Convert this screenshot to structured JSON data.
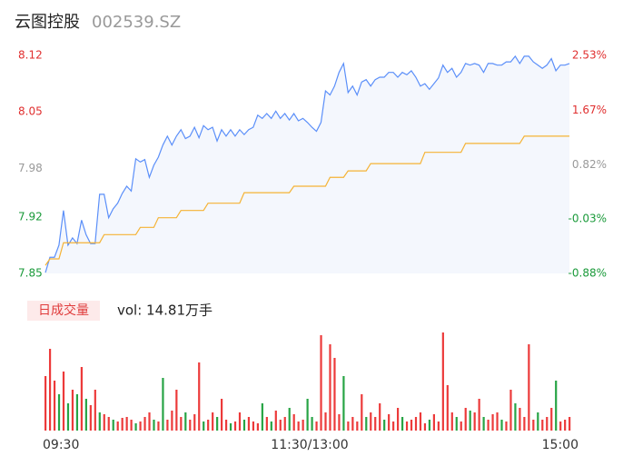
{
  "header": {
    "name": "云图控股",
    "code": "002539.SZ"
  },
  "chart_data": [
    {
      "type": "line",
      "xlim": [
        0,
        117
      ],
      "ylim": [
        7.85,
        8.12
      ],
      "yticks": [
        7.85,
        7.92,
        7.98,
        8.05,
        8.12
      ],
      "ytick_colors": [
        "#1a9a3a",
        "#1a9a3a",
        "#999999",
        "#e02f2f",
        "#e02f2f"
      ],
      "y2lim": [
        -0.88,
        2.53
      ],
      "y2ticks": [
        {
          "value": -0.88,
          "label": "-0.88%"
        },
        {
          "value": -0.03,
          "label": "-0.03%"
        },
        {
          "value": 0.82,
          "label": "0.82%"
        },
        {
          "value": 1.67,
          "label": "1.67%"
        },
        {
          "value": 2.53,
          "label": "2.53%"
        }
      ],
      "y2tick_colors": [
        "#1a9a3a",
        "#1a9a3a",
        "#999999",
        "#e02f2f",
        "#e02f2f"
      ],
      "area_color": "#f4f7fd",
      "series": [
        {
          "color": "#5b8ff9",
          "values": [
            7.851,
            7.87,
            7.87,
            7.885,
            7.928,
            7.885,
            7.894,
            7.887,
            7.916,
            7.898,
            7.887,
            7.887,
            7.948,
            7.948,
            7.919,
            7.93,
            7.937,
            7.949,
            7.958,
            7.952,
            7.992,
            7.988,
            7.991,
            7.969,
            7.984,
            7.994,
            8.009,
            8.02,
            8.009,
            8.02,
            8.028,
            8.017,
            8.02,
            8.031,
            8.018,
            8.033,
            8.028,
            8.031,
            8.014,
            8.028,
            8.02,
            8.028,
            8.02,
            8.028,
            8.022,
            8.028,
            8.031,
            8.046,
            8.042,
            8.048,
            8.042,
            8.051,
            8.042,
            8.048,
            8.04,
            8.048,
            8.039,
            8.042,
            8.037,
            8.031,
            8.026,
            8.037,
            8.076,
            8.071,
            8.082,
            8.099,
            8.11,
            8.074,
            8.082,
            8.071,
            8.087,
            8.09,
            8.082,
            8.09,
            8.093,
            8.093,
            8.099,
            8.099,
            8.093,
            8.099,
            8.096,
            8.101,
            8.093,
            8.082,
            8.085,
            8.078,
            8.085,
            8.092,
            8.108,
            8.099,
            8.104,
            8.093,
            8.099,
            8.11,
            8.108,
            8.11,
            8.108,
            8.099,
            8.11,
            8.11,
            8.108,
            8.108,
            8.112,
            8.112,
            8.119,
            8.11,
            8.119,
            8.119,
            8.112,
            8.108,
            8.104,
            8.108,
            8.116,
            8.101,
            8.108,
            8.108,
            8.11
          ]
        },
        {
          "color": "#f5b335",
          "values": [
            7.86,
            7.868,
            7.868,
            7.868,
            7.888,
            7.888,
            7.888,
            7.888,
            7.888,
            7.888,
            7.888,
            7.888,
            7.888,
            7.898,
            7.898,
            7.898,
            7.898,
            7.898,
            7.898,
            7.898,
            7.898,
            7.907,
            7.907,
            7.907,
            7.907,
            7.919,
            7.919,
            7.919,
            7.919,
            7.919,
            7.928,
            7.928,
            7.928,
            7.928,
            7.928,
            7.928,
            7.937,
            7.937,
            7.937,
            7.937,
            7.937,
            7.937,
            7.937,
            7.937,
            7.95,
            7.95,
            7.95,
            7.95,
            7.95,
            7.95,
            7.95,
            7.95,
            7.95,
            7.95,
            7.95,
            7.958,
            7.958,
            7.958,
            7.958,
            7.958,
            7.958,
            7.958,
            7.958,
            7.969,
            7.969,
            7.969,
            7.969,
            7.977,
            7.977,
            7.977,
            7.977,
            7.977,
            7.986,
            7.986,
            7.986,
            7.986,
            7.986,
            7.986,
            7.986,
            7.986,
            7.986,
            7.986,
            7.986,
            7.986,
            8.0,
            8.0,
            8.0,
            8.0,
            8.0,
            8.0,
            8.0,
            8.0,
            8.0,
            8.011,
            8.011,
            8.011,
            8.011,
            8.011,
            8.011,
            8.011,
            8.011,
            8.011,
            8.011,
            8.011,
            8.011,
            8.011,
            8.02,
            8.02,
            8.02,
            8.02,
            8.02,
            8.02,
            8.02,
            8.02,
            8.02,
            8.02,
            8.02
          ]
        }
      ]
    },
    {
      "type": "bar",
      "tab": "日成交量",
      "volume_label": "vol: 14.81万手",
      "xlim": [
        0,
        117
      ],
      "xticks": [
        {
          "value": 0,
          "label": "09:30"
        },
        {
          "value": 58.5,
          "label": "11:30/13:00"
        },
        {
          "value": 117,
          "label": "15:00"
        }
      ],
      "values": [
        60,
        90,
        55,
        40,
        65,
        30,
        45,
        40,
        70,
        35,
        28,
        45,
        20,
        18,
        15,
        12,
        10,
        14,
        15,
        12,
        8,
        10,
        15,
        20,
        12,
        10,
        58,
        12,
        22,
        45,
        15,
        20,
        12,
        18,
        75,
        10,
        12,
        20,
        15,
        35,
        12,
        8,
        10,
        20,
        12,
        15,
        10,
        8,
        30,
        15,
        10,
        22,
        12,
        15,
        25,
        18,
        10,
        12,
        35,
        15,
        10,
        105,
        20,
        95,
        80,
        18,
        60,
        10,
        15,
        10,
        40,
        15,
        20,
        15,
        30,
        12,
        18,
        10,
        25,
        15,
        10,
        12,
        15,
        20,
        8,
        12,
        18,
        10,
        108,
        50,
        20,
        15,
        10,
        25,
        22,
        20,
        35,
        15,
        12,
        18,
        20,
        12,
        10,
        45,
        30,
        25,
        15,
        95,
        12,
        20,
        12,
        15,
        25,
        55,
        10,
        12,
        15
      ],
      "colors": [
        "#ec3a3a",
        "#ec3a3a",
        "#ec3a3a",
        "#27a445",
        "#ec3a3a",
        "#27a445",
        "#ec3a3a",
        "#27a445",
        "#ec3a3a",
        "#27a445",
        "#ec3a3a",
        "#ec3a3a",
        "#27a445",
        "#ec3a3a",
        "#ec3a3a",
        "#27a445",
        "#ec3a3a",
        "#ec3a3a",
        "#ec3a3a",
        "#ec3a3a",
        "#27a445",
        "#ec3a3a",
        "#ec3a3a",
        "#ec3a3a",
        "#27a445",
        "#ec3a3a",
        "#27a445",
        "#ec3a3a",
        "#ec3a3a",
        "#ec3a3a",
        "#ec3a3a",
        "#27a445",
        "#ec3a3a",
        "#ec3a3a",
        "#ec3a3a",
        "#27a445",
        "#ec3a3a",
        "#ec3a3a",
        "#27a445",
        "#ec3a3a",
        "#ec3a3a",
        "#27a445",
        "#ec3a3a",
        "#ec3a3a",
        "#27a445",
        "#ec3a3a",
        "#ec3a3a",
        "#ec3a3a",
        "#27a445",
        "#ec3a3a",
        "#27a445",
        "#ec3a3a",
        "#ec3a3a",
        "#ec3a3a",
        "#27a445",
        "#ec3a3a",
        "#ec3a3a",
        "#ec3a3a",
        "#27a445",
        "#27a445",
        "#ec3a3a",
        "#ec3a3a",
        "#ec3a3a",
        "#ec3a3a",
        "#ec3a3a",
        "#ec3a3a",
        "#27a445",
        "#ec3a3a",
        "#ec3a3a",
        "#ec3a3a",
        "#ec3a3a",
        "#27a445",
        "#ec3a3a",
        "#ec3a3a",
        "#ec3a3a",
        "#27a445",
        "#ec3a3a",
        "#ec3a3a",
        "#ec3a3a",
        "#27a445",
        "#ec3a3a",
        "#ec3a3a",
        "#ec3a3a",
        "#ec3a3a",
        "#ec3a3a",
        "#27a445",
        "#ec3a3a",
        "#ec3a3a",
        "#ec3a3a",
        "#ec3a3a",
        "#ec3a3a",
        "#27a445",
        "#ec3a3a",
        "#ec3a3a",
        "#27a445",
        "#ec3a3a",
        "#ec3a3a",
        "#27a445",
        "#ec3a3a",
        "#ec3a3a",
        "#ec3a3a",
        "#27a445",
        "#ec3a3a",
        "#ec3a3a",
        "#27a445",
        "#ec3a3a",
        "#ec3a3a",
        "#ec3a3a",
        "#ec3a3a",
        "#27a445",
        "#ec3a3a",
        "#ec3a3a",
        "#ec3a3a",
        "#27a445",
        "#ec3a3a",
        "#ec3a3a",
        "#ec3a3a"
      ]
    }
  ]
}
